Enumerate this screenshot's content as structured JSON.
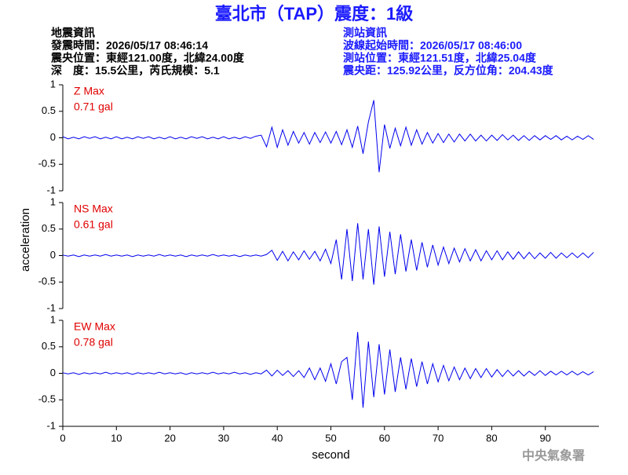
{
  "header": {
    "title": "臺北市（TAP）震度：1級",
    "quake": [
      "地震資訊",
      "發震時間：2026/05/17 08:46:14",
      "震央位置：東經121.00度，北緯24.00度",
      "深　度：15.5公里，芮氏規模：5.1"
    ],
    "station": [
      "測站資訊",
      "波線起始時間：2026/05/17 08:46:00",
      "測站位置：東經121.51度，北緯25.04度",
      "震央距：125.92公里，反方位角：204.43度"
    ]
  },
  "footer": "中央氣象署",
  "chart_data": [
    {
      "type": "line",
      "label": "Z Max",
      "max_label": "0.71 gal",
      "label_color": "#e00000",
      "color": "#0000ee",
      "xlim": [
        0,
        100
      ],
      "ylim": [
        -1,
        1
      ],
      "yticks": [
        1,
        0.5,
        0,
        -0.5,
        -1
      ],
      "x": [
        0,
        1,
        2,
        3,
        4,
        5,
        6,
        7,
        8,
        9,
        10,
        11,
        12,
        13,
        14,
        15,
        16,
        17,
        18,
        19,
        20,
        21,
        22,
        23,
        24,
        25,
        26,
        27,
        28,
        29,
        30,
        31,
        32,
        33,
        34,
        35,
        36,
        37,
        38,
        39,
        40,
        41,
        42,
        43,
        44,
        45,
        46,
        47,
        48,
        49,
        50,
        51,
        52,
        53,
        54,
        55,
        56,
        57,
        58,
        59,
        60,
        61,
        62,
        63,
        64,
        65,
        66,
        67,
        68,
        69,
        70,
        71,
        72,
        73,
        74,
        75,
        76,
        77,
        78,
        79,
        80,
        81,
        82,
        83,
        84,
        85,
        86,
        87,
        88,
        89,
        90,
        91,
        92,
        93,
        94,
        95,
        96,
        97,
        98,
        99
      ],
      "values": [
        0.02,
        -0.02,
        0.01,
        -0.02,
        0.02,
        -0.01,
        0.02,
        -0.02,
        0.01,
        -0.02,
        0.02,
        -0.02,
        0.01,
        -0.02,
        0.02,
        -0.01,
        0.02,
        -0.02,
        0.01,
        -0.02,
        0.02,
        -0.02,
        0.01,
        -0.02,
        0.02,
        -0.01,
        0.02,
        -0.02,
        0.01,
        -0.02,
        0.02,
        -0.02,
        0.01,
        -0.02,
        0.02,
        -0.01,
        0.03,
        0.05,
        -0.17,
        0.2,
        -0.18,
        0.15,
        -0.14,
        0.12,
        -0.1,
        0.1,
        -0.12,
        0.1,
        -0.09,
        0.11,
        -0.1,
        0.12,
        -0.13,
        0.15,
        -0.18,
        0.22,
        -0.3,
        0.3,
        0.71,
        -0.65,
        0.25,
        -0.2,
        0.18,
        -0.15,
        0.2,
        -0.14,
        0.15,
        -0.12,
        0.1,
        -0.1,
        0.08,
        -0.09,
        0.07,
        -0.08,
        0.07,
        -0.06,
        0.07,
        -0.06,
        0.05,
        -0.06,
        0.05,
        -0.05,
        0.06,
        -0.04,
        0.05,
        -0.05,
        0.04,
        -0.05,
        0.04,
        -0.04,
        0.04,
        -0.03,
        0.04,
        -0.04,
        0.03,
        -0.04,
        0.03,
        -0.03,
        0.04,
        -0.03
      ]
    },
    {
      "type": "line",
      "label": "NS Max",
      "max_label": "0.61 gal",
      "label_color": "#e00000",
      "color": "#0000ee",
      "ylabel": "acceleration",
      "xlim": [
        0,
        100
      ],
      "ylim": [
        -1,
        1
      ],
      "yticks": [
        1,
        0.5,
        0,
        -0.5,
        -1
      ],
      "x": [
        0,
        1,
        2,
        3,
        4,
        5,
        6,
        7,
        8,
        9,
        10,
        11,
        12,
        13,
        14,
        15,
        16,
        17,
        18,
        19,
        20,
        21,
        22,
        23,
        24,
        25,
        26,
        27,
        28,
        29,
        30,
        31,
        32,
        33,
        34,
        35,
        36,
        37,
        38,
        39,
        40,
        41,
        42,
        43,
        44,
        45,
        46,
        47,
        48,
        49,
        50,
        51,
        52,
        53,
        54,
        55,
        56,
        57,
        58,
        59,
        60,
        61,
        62,
        63,
        64,
        65,
        66,
        67,
        68,
        69,
        70,
        71,
        72,
        73,
        74,
        75,
        76,
        77,
        78,
        79,
        80,
        81,
        82,
        83,
        84,
        85,
        86,
        87,
        88,
        89,
        90,
        91,
        92,
        93,
        94,
        95,
        96,
        97,
        98,
        99
      ],
      "values": [
        0.01,
        -0.01,
        0.01,
        -0.02,
        0.01,
        -0.01,
        0.01,
        -0.01,
        0.02,
        -0.01,
        0.01,
        -0.01,
        0.01,
        -0.02,
        0.01,
        -0.01,
        0.01,
        -0.01,
        0.02,
        -0.01,
        0.01,
        -0.01,
        0.01,
        -0.02,
        0.01,
        -0.01,
        0.01,
        -0.01,
        0.02,
        -0.01,
        0.01,
        -0.01,
        0.01,
        -0.02,
        0.01,
        -0.01,
        0.01,
        -0.01,
        0.02,
        0.1,
        -0.09,
        0.08,
        -0.1,
        0.07,
        -0.08,
        0.09,
        -0.07,
        0.08,
        -0.1,
        0.12,
        -0.15,
        0.3,
        -0.45,
        0.5,
        -0.48,
        0.61,
        -0.45,
        0.5,
        -0.55,
        0.55,
        -0.4,
        0.45,
        -0.35,
        0.4,
        -0.3,
        0.3,
        -0.28,
        0.25,
        -0.22,
        0.2,
        -0.18,
        0.16,
        -0.15,
        0.14,
        -0.12,
        0.13,
        -0.1,
        0.11,
        -0.1,
        0.09,
        -0.08,
        0.09,
        -0.08,
        0.07,
        -0.07,
        0.07,
        -0.06,
        0.06,
        -0.06,
        0.05,
        -0.05,
        0.06,
        -0.05,
        0.05,
        -0.04,
        0.05,
        -0.04,
        0.05,
        -0.04,
        0.06
      ]
    },
    {
      "type": "line",
      "label": "EW Max",
      "max_label": "0.78 gal",
      "label_color": "#e00000",
      "color": "#0000ee",
      "xlabel": "second",
      "xlim": [
        0,
        100
      ],
      "ylim": [
        -1,
        1
      ],
      "yticks": [
        1,
        0.5,
        0,
        -0.5,
        -1
      ],
      "xticks": [
        0,
        10,
        20,
        30,
        40,
        50,
        60,
        70,
        80,
        90
      ],
      "x": [
        0,
        1,
        2,
        3,
        4,
        5,
        6,
        7,
        8,
        9,
        10,
        11,
        12,
        13,
        14,
        15,
        16,
        17,
        18,
        19,
        20,
        21,
        22,
        23,
        24,
        25,
        26,
        27,
        28,
        29,
        30,
        31,
        32,
        33,
        34,
        35,
        36,
        37,
        38,
        39,
        40,
        41,
        42,
        43,
        44,
        45,
        46,
        47,
        48,
        49,
        50,
        51,
        52,
        53,
        54,
        55,
        56,
        57,
        58,
        59,
        60,
        61,
        62,
        63,
        64,
        65,
        66,
        67,
        68,
        69,
        70,
        71,
        72,
        73,
        74,
        75,
        76,
        77,
        78,
        79,
        80,
        81,
        82,
        83,
        84,
        85,
        86,
        87,
        88,
        89,
        90,
        91,
        92,
        93,
        94,
        95,
        96,
        97,
        98,
        99
      ],
      "values": [
        0.01,
        -0.01,
        0.01,
        -0.02,
        0.01,
        -0.01,
        0.01,
        -0.01,
        0.02,
        -0.01,
        0.01,
        -0.01,
        0.01,
        -0.02,
        0.01,
        -0.01,
        0.01,
        -0.01,
        0.02,
        -0.01,
        0.01,
        -0.01,
        0.01,
        -0.02,
        0.01,
        -0.01,
        0.01,
        -0.01,
        0.02,
        -0.01,
        0.01,
        -0.01,
        0.02,
        -0.01,
        0.01,
        -0.02,
        0.01,
        -0.01,
        0.06,
        -0.05,
        0.06,
        -0.04,
        0.05,
        -0.06,
        0.05,
        -0.08,
        0.1,
        -0.12,
        0.1,
        -0.15,
        0.18,
        -0.2,
        0.22,
        0.3,
        -0.5,
        0.78,
        -0.65,
        0.6,
        -0.45,
        0.55,
        -0.4,
        0.45,
        -0.35,
        0.3,
        -0.3,
        0.28,
        -0.25,
        0.22,
        -0.2,
        0.18,
        -0.16,
        0.15,
        -0.14,
        0.12,
        -0.12,
        0.1,
        -0.1,
        0.09,
        -0.08,
        0.09,
        -0.07,
        0.07,
        -0.06,
        0.06,
        -0.05,
        0.05,
        -0.05,
        0.04,
        -0.04,
        0.05,
        -0.04,
        0.04,
        -0.03,
        0.04,
        -0.03,
        0.04,
        -0.03,
        0.03,
        -0.03,
        0.03
      ]
    }
  ]
}
